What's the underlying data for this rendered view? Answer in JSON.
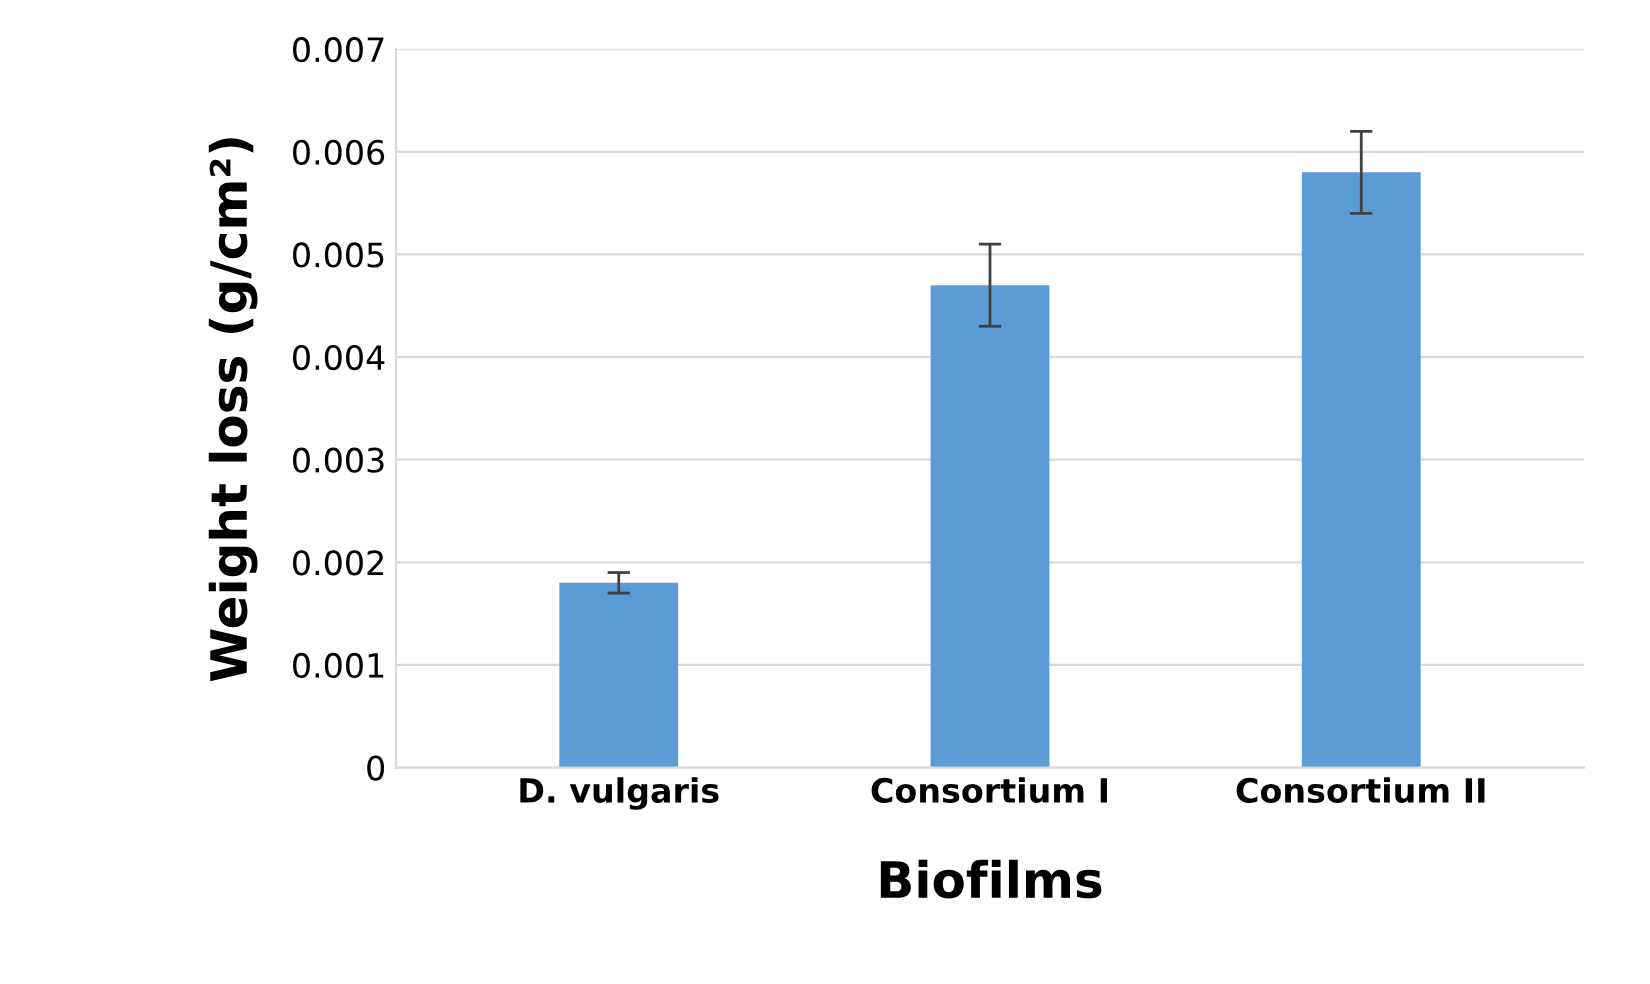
{
  "chart_data": {
    "type": "bar",
    "xlabel": "Biofilms",
    "ylabel": "Weight loss (g/cm²)",
    "categories": [
      "D. vulgaris",
      "Consortium I",
      "Consortium II"
    ],
    "values": [
      0.0018,
      0.0047,
      0.0058
    ],
    "errors": [
      0.0001,
      0.0004,
      0.0004
    ],
    "color": "#5b9bd5",
    "ylim": [
      0,
      0.007
    ],
    "yticks": [
      0,
      0.001,
      0.002,
      0.003,
      0.004,
      0.005,
      0.006,
      0.007
    ],
    "grid": "y",
    "legend": false
  }
}
